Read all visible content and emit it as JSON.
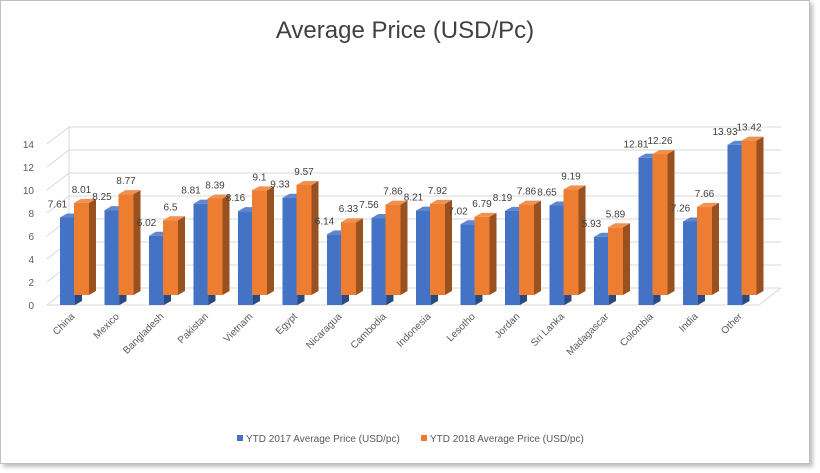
{
  "chart_data": {
    "type": "bar",
    "title": "Average Price (USD/Pc)",
    "categories": [
      "China",
      "Mexico",
      "Bangladesh",
      "Pakistan",
      "Vietnam",
      "Egypt",
      "Nicaragua",
      "Cambodia",
      "Indonesia",
      "Lesotho",
      "Jordan",
      "Sri Lanka",
      "Madagascar",
      "Colombia",
      "India",
      "Other"
    ],
    "series": [
      {
        "name": "YTD 2017 Average Price (USD/pc)",
        "color": "#4472c4",
        "values": [
          7.61,
          8.25,
          6.02,
          8.81,
          8.16,
          9.33,
          6.14,
          7.56,
          8.21,
          7.02,
          8.19,
          8.65,
          5.93,
          12.81,
          7.26,
          13.93
        ]
      },
      {
        "name": "YTD 2018 Average Price (USD/pc)",
        "color": "#ed7d31",
        "values": [
          8.01,
          8.77,
          6.5,
          8.39,
          9.1,
          9.57,
          6.33,
          7.86,
          7.92,
          6.79,
          7.86,
          9.19,
          5.89,
          12.26,
          7.66,
          13.42
        ]
      }
    ],
    "ylim": [
      0,
      14
    ],
    "yticks": [
      0,
      2,
      4,
      6,
      8,
      10,
      12,
      14
    ],
    "grid": true,
    "legend": "bottom",
    "style": "3d-clustered-column"
  }
}
